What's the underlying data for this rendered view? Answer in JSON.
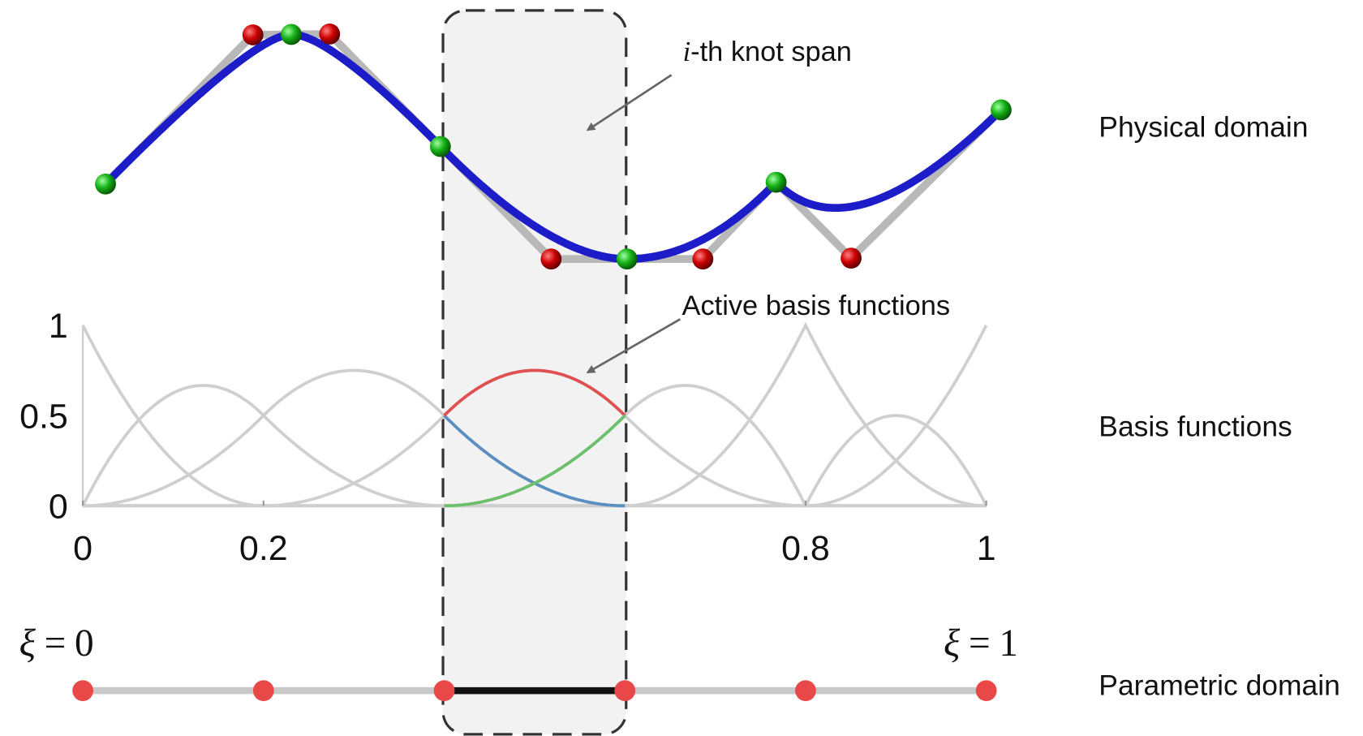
{
  "annotations": {
    "knot_span": {
      "symbol": "i",
      "text": "-th knot span"
    },
    "active": "Active basis functions"
  },
  "plot": {
    "y_tick_labels": [
      "0",
      "0.5",
      "1"
    ],
    "x_tick_labels": [
      "0",
      "0.2",
      "0.8",
      "1"
    ]
  },
  "parametric": {
    "start": {
      "symbol": "ξ",
      "relation": "=",
      "value": "0"
    },
    "end": {
      "symbol": "ξ",
      "relation": "=",
      "value": "1"
    }
  },
  "side_labels": [
    "Physical domain",
    "Basis functions",
    "Parametric domain"
  ]
}
